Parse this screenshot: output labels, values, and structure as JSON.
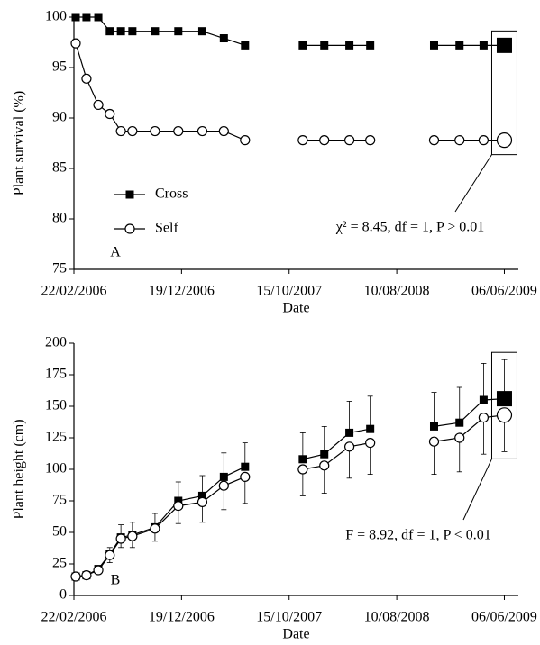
{
  "chart_data": [
    {
      "type": "line",
      "xlabel": "Date",
      "ylabel": "Plant survival (%)",
      "panel_label": "A",
      "annotation": "χ² = 8.45, df = 1, P > 0.01",
      "x": [
        "2006-02-27",
        "2006-03-29",
        "2006-05-01",
        "2006-06-02",
        "2006-07-03",
        "2006-08-04",
        "2006-10-06",
        "2006-12-10",
        "2007-02-15",
        "2007-04-16",
        "2007-06-14",
        null,
        "2007-11-22",
        "2008-01-21",
        "2008-03-31",
        "2008-05-28",
        null,
        "2008-11-22",
        "2009-02-01",
        "2009-04-09",
        "2009-06-06"
      ],
      "series": [
        {
          "name": "Cross",
          "color": "#000000",
          "marker": "square",
          "values": [
            100,
            100,
            100,
            98.6,
            98.6,
            98.6,
            98.6,
            98.6,
            98.6,
            97.9,
            97.2,
            null,
            97.2,
            97.2,
            97.2,
            97.2,
            null,
            97.2,
            97.2,
            97.2,
            97.2
          ]
        },
        {
          "name": "Self",
          "color": "#000000",
          "marker": "circle-open",
          "values": [
            97.4,
            93.9,
            91.3,
            90.4,
            88.7,
            88.7,
            88.7,
            88.7,
            88.7,
            88.7,
            87.8,
            null,
            87.8,
            87.8,
            87.8,
            87.8,
            null,
            87.8,
            87.8,
            87.8,
            87.8
          ]
        }
      ],
      "xlim": [
        "2006-02-22",
        "2009-07-15"
      ],
      "xticks": [
        {
          "value": "2006-02-22",
          "label": "22/02/2006"
        },
        {
          "value": "2006-12-19",
          "label": "19/12/2006"
        },
        {
          "value": "2007-10-15",
          "label": "15/10/2007"
        },
        {
          "value": "2008-08-10",
          "label": "10/08/2008"
        },
        {
          "value": "2009-06-06",
          "label": "06/06/2009"
        }
      ],
      "ylim": [
        75,
        100
      ],
      "yticks": [
        75,
        80,
        85,
        90,
        95,
        100
      ],
      "legend": "lower left",
      "highlight_last": true
    },
    {
      "type": "line",
      "xlabel": "Date",
      "ylabel": "Plant height (cm)",
      "panel_label": "B",
      "annotation": "F = 8.92, df = 1, P < 0.01",
      "x": [
        "2006-02-27",
        "2006-03-29",
        "2006-05-01",
        "2006-06-02",
        "2006-07-03",
        "2006-08-04",
        "2006-10-06",
        "2006-12-10",
        "2007-02-15",
        "2007-04-16",
        "2007-06-14",
        null,
        "2007-11-22",
        "2008-01-21",
        "2008-03-31",
        "2008-05-28",
        null,
        "2008-11-22",
        "2009-02-01",
        "2009-04-09",
        "2009-06-06"
      ],
      "series": [
        {
          "color": "#000000",
          "marker": "square",
          "error_direction": "up",
          "values": [
            15,
            16,
            21,
            33,
            46,
            48,
            54,
            75,
            79,
            94,
            102,
            null,
            108,
            112,
            129,
            132,
            null,
            134,
            137,
            155,
            156
          ],
          "errors": [
            1,
            1,
            2,
            5,
            10,
            10,
            11,
            15,
            16,
            19,
            19,
            null,
            21,
            22,
            25,
            26,
            null,
            27,
            28,
            29,
            31
          ]
        },
        {
          "color": "#000000",
          "marker": "circle-open",
          "error_direction": "down",
          "values": [
            15,
            16,
            20,
            32,
            45,
            47,
            53,
            71,
            74,
            87,
            94,
            null,
            100,
            103,
            118,
            121,
            null,
            122,
            125,
            141,
            143
          ],
          "errors": [
            1,
            1,
            2,
            6,
            7,
            9,
            10,
            14,
            16,
            19,
            21,
            null,
            21,
            22,
            25,
            25,
            null,
            26,
            27,
            29,
            29
          ]
        }
      ],
      "xlim": [
        "2006-02-22",
        "2009-07-15"
      ],
      "xticks": [
        {
          "value": "2006-02-22",
          "label": "22/02/2006"
        },
        {
          "value": "2006-12-19",
          "label": "19/12/2006"
        },
        {
          "value": "2007-10-15",
          "label": "15/10/2007"
        },
        {
          "value": "2008-08-10",
          "label": "10/08/2008"
        },
        {
          "value": "2009-06-06",
          "label": "06/06/2009"
        }
      ],
      "ylim": [
        0,
        200
      ],
      "yticks": [
        0,
        25,
        50,
        75,
        100,
        125,
        150,
        175,
        200
      ],
      "highlight_last": true
    }
  ]
}
